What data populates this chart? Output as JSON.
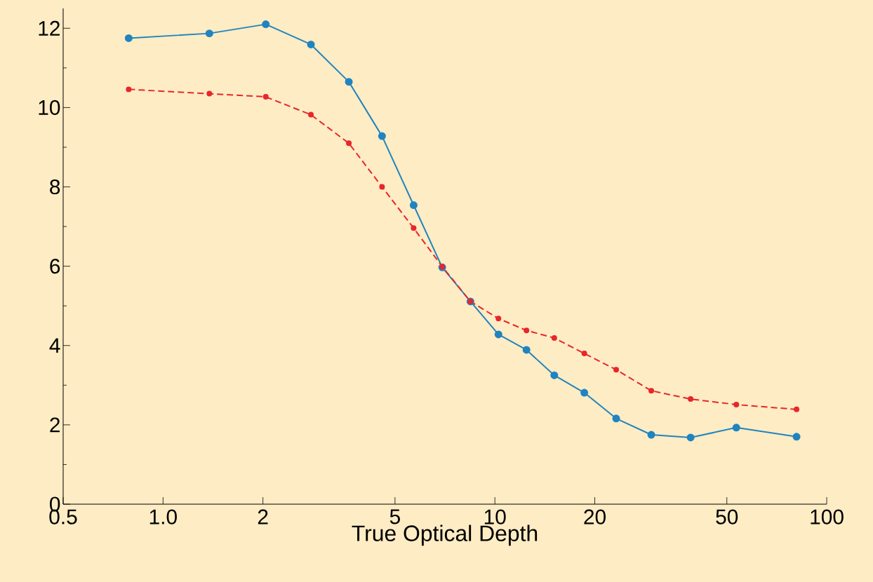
{
  "chart_data": {
    "type": "line",
    "xlabel": "True Optical Depth",
    "log": "x",
    "marker": "circle",
    "x": [
      0.788,
      1.379,
      2.04,
      2.79,
      3.63,
      4.57,
      5.69,
      6.94,
      8.44,
      10.25,
      12.45,
      15.1,
      18.6,
      23.2,
      29.6,
      38.9,
      53.4,
      81.1
    ],
    "series": [
      {
        "color": "#1f84c0",
        "line_style": "solid",
        "values": [
          11.75,
          11.87,
          12.1,
          11.59,
          10.65,
          9.28,
          7.54,
          5.97,
          5.11,
          4.28,
          3.89,
          3.25,
          2.81,
          2.16,
          1.75,
          1.68,
          1.93,
          1.7
        ]
      },
      {
        "color": "#e8262b",
        "line_style": "dashed",
        "values": [
          10.46,
          10.35,
          10.27,
          9.82,
          9.1,
          8.0,
          6.96,
          5.99,
          5.11,
          4.68,
          4.38,
          4.19,
          3.8,
          3.39,
          2.86,
          2.65,
          2.51,
          2.39
        ]
      }
    ],
    "xlim": [
      0.5,
      100
    ],
    "ylim": [
      0,
      12.5
    ],
    "xticks": [
      0.5,
      {
        "value": 1,
        "label": "1.0"
      },
      2,
      5,
      10,
      20,
      50,
      100
    ],
    "yticks": [
      0,
      2,
      4,
      6,
      8,
      10,
      12
    ]
  }
}
